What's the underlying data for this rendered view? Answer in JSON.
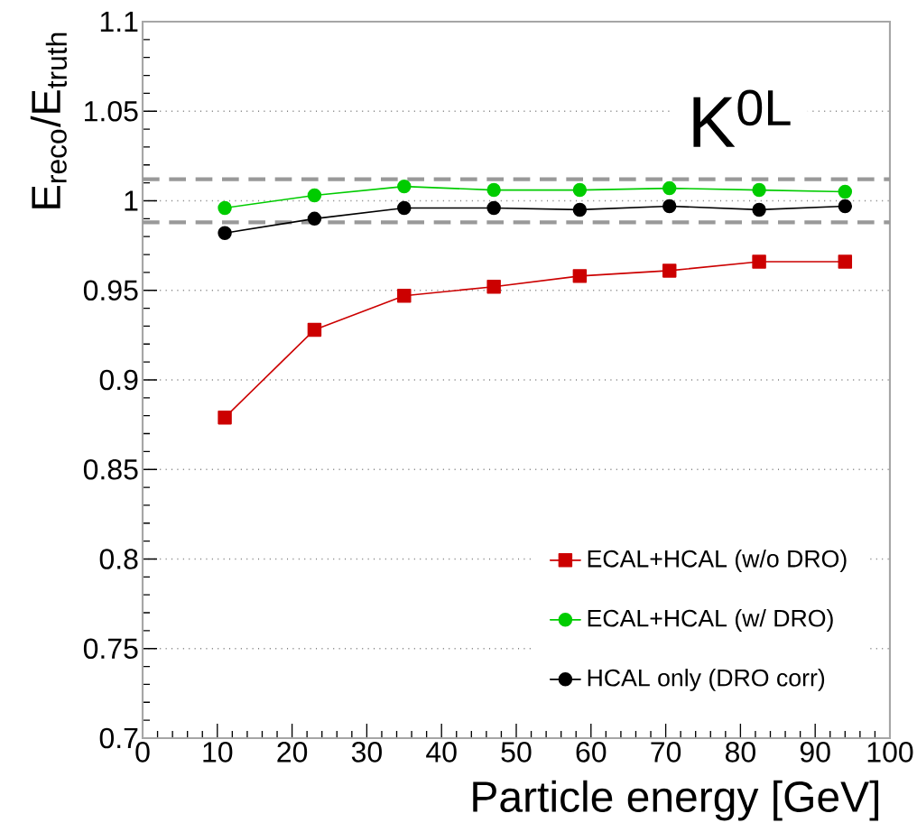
{
  "chart_data": {
    "type": "line",
    "xlabel": "Particle energy [GeV]",
    "ylabel": "E$_{reco}$/E$_{truth}$",
    "annotations": [
      "K$^{0L}$"
    ],
    "x": [
      11,
      23,
      35,
      47,
      58.5,
      70.5,
      82.5,
      94
    ],
    "series": [
      {
        "name": "ECAL+HCAL (w/o DRO)",
        "color": "#cc0000",
        "marker": "square",
        "values": [
          0.879,
          0.928,
          0.947,
          0.952,
          0.958,
          0.961,
          0.966,
          0.966
        ]
      },
      {
        "name": "ECAL+HCAL (w/ DRO)",
        "color": "#00cc00",
        "marker": "circle",
        "values": [
          0.996,
          1.003,
          1.008,
          1.006,
          1.006,
          1.007,
          1.006,
          1.005
        ]
      },
      {
        "name": "HCAL only (DRO corr)",
        "color": "#000000",
        "marker": "circle",
        "values": [
          0.982,
          0.99,
          0.996,
          0.996,
          0.995,
          0.997,
          0.995,
          0.997
        ]
      }
    ],
    "ref_lines": [
      {
        "axis": "y",
        "value": 1.012,
        "color": "#999999",
        "line_style": "dashed"
      },
      {
        "axis": "y",
        "value": 0.988,
        "color": "#999999",
        "line_style": "dashed"
      }
    ],
    "xlim": [
      0,
      100
    ],
    "xticks": [
      0,
      10,
      20,
      30,
      40,
      50,
      60,
      70,
      80,
      90,
      100
    ],
    "ylim": [
      0.7,
      1.1
    ],
    "yticks": [
      0.7,
      0.75,
      0.8,
      0.85,
      0.9,
      0.95,
      1,
      1.05,
      1.1
    ],
    "grid": "y",
    "legend": "bottom right"
  }
}
